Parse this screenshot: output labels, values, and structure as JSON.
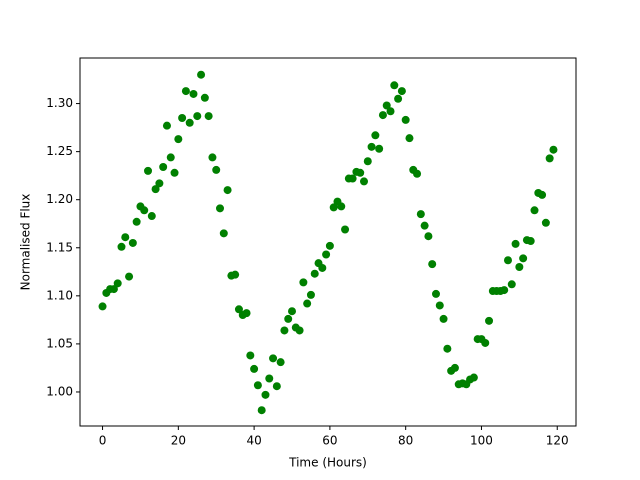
{
  "chart_data": {
    "type": "scatter",
    "x_label": "Time (Hours)",
    "y_label": "Normalised Flux",
    "x": [
      0,
      1,
      2,
      3,
      4,
      5,
      6,
      7,
      8,
      9,
      10,
      11,
      12,
      13,
      14,
      15,
      16,
      17,
      18,
      19,
      20,
      21,
      22,
      23,
      24,
      25,
      26,
      27,
      28,
      29,
      30,
      31,
      32,
      33,
      34,
      35,
      36,
      37,
      38,
      39,
      40,
      41,
      42,
      43,
      44,
      45,
      46,
      47,
      48,
      49,
      50,
      51,
      52,
      53,
      54,
      55,
      56,
      57,
      58,
      59,
      60,
      61,
      62,
      63,
      64,
      65,
      66,
      67,
      68,
      69,
      70,
      71,
      72,
      73,
      74,
      75,
      76,
      77,
      78,
      79,
      80,
      81,
      82,
      83,
      84,
      85,
      86,
      87,
      88,
      89,
      90,
      91,
      92,
      93,
      94,
      95,
      96,
      97,
      98,
      99,
      100,
      101,
      102,
      103,
      104,
      105,
      106,
      107,
      108,
      109,
      110,
      111,
      112,
      113,
      114,
      115,
      116,
      117,
      118,
      119
    ],
    "values": [
      1.089,
      1.103,
      1.107,
      1.107,
      1.113,
      1.151,
      1.161,
      1.12,
      1.155,
      1.177,
      1.193,
      1.189,
      1.23,
      1.183,
      1.211,
      1.217,
      1.234,
      1.277,
      1.244,
      1.228,
      1.263,
      1.285,
      1.313,
      1.28,
      1.31,
      1.287,
      1.33,
      1.306,
      1.287,
      1.244,
      1.231,
      1.191,
      1.165,
      1.21,
      1.121,
      1.122,
      1.086,
      1.08,
      1.082,
      1.038,
      1.024,
      1.007,
      0.981,
      0.997,
      1.014,
      1.035,
      1.006,
      1.031,
      1.064,
      1.076,
      1.084,
      1.067,
      1.064,
      1.114,
      1.092,
      1.101,
      1.123,
      1.134,
      1.129,
      1.143,
      1.152,
      1.192,
      1.198,
      1.193,
      1.169,
      1.222,
      1.222,
      1.229,
      1.228,
      1.219,
      1.24,
      1.255,
      1.267,
      1.253,
      1.288,
      1.298,
      1.292,
      1.319,
      1.305,
      1.313,
      1.283,
      1.264,
      1.231,
      1.227,
      1.185,
      1.173,
      1.162,
      1.133,
      1.102,
      1.09,
      1.076,
      1.045,
      1.022,
      1.025,
      1.008,
      1.009,
      1.008,
      1.013,
      1.015,
      1.055,
      1.055,
      1.051,
      1.074,
      1.105,
      1.105,
      1.105,
      1.106,
      1.137,
      1.112,
      1.154,
      1.13,
      1.139,
      1.158,
      1.157,
      1.189,
      1.207,
      1.205,
      1.176,
      1.243,
      1.252
    ],
    "color": "#008000",
    "xlim": [
      -5.95,
      124.95
    ],
    "xticks": [
      0,
      20,
      40,
      60,
      80,
      100,
      120
    ],
    "ylim": [
      0.9646,
      1.3474
    ],
    "yticks": [
      {
        "value": 1.0,
        "label": "1.00"
      },
      1.05,
      {
        "value": 1.1,
        "label": "1.10"
      },
      1.15,
      {
        "value": 1.2,
        "label": "1.20"
      },
      1.25,
      {
        "value": 1.3,
        "label": "1.30"
      }
    ]
  }
}
